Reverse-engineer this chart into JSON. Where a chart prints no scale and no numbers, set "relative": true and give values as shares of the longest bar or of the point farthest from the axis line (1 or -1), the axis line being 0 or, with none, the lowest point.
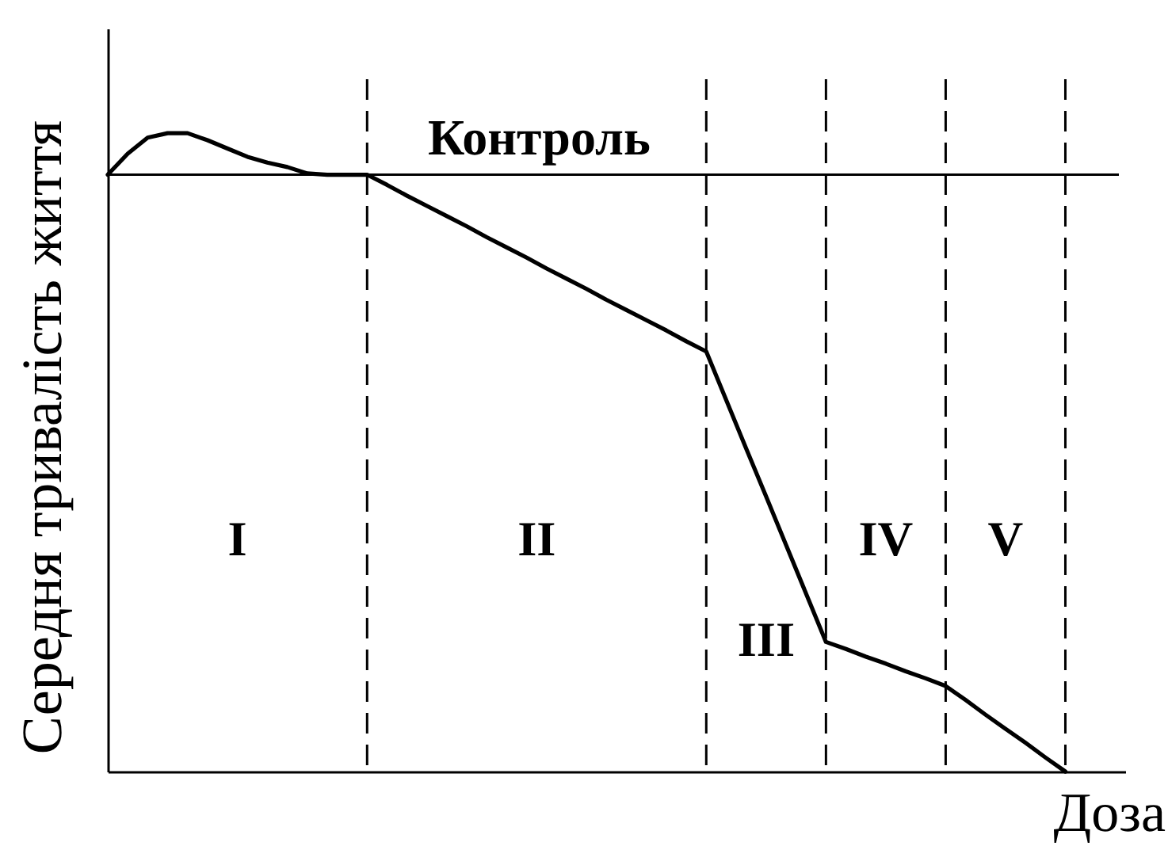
{
  "chart_data": {
    "type": "line",
    "relative": true,
    "xlabel": "Доза",
    "ylabel": "Середня тривалість життя",
    "categories": [
      null,
      null,
      null,
      null,
      null,
      null,
      null,
      null,
      null,
      null,
      null,
      null,
      null,
      null,
      null,
      null,
      null,
      null,
      null,
      null,
      null,
      null,
      null,
      null,
      null,
      null,
      null,
      null,
      null,
      null,
      null,
      null,
      null,
      null,
      null,
      null,
      null,
      null,
      null,
      null,
      null,
      null,
      null,
      null,
      null,
      null,
      null,
      null,
      null,
      null,
      null,
      null
    ],
    "series": [
      {
        "color": "#000000",
        "values": [
          0.935,
          0.968,
          0.993,
          1.0,
          1.0,
          0.989,
          0.976,
          0.963,
          0.954,
          0.947,
          0.937,
          0.935,
          0.935,
          0.935,
          0.919,
          0.902,
          0.886,
          0.87,
          0.854,
          0.837,
          0.821,
          0.805,
          0.788,
          0.772,
          0.756,
          0.739,
          0.723,
          0.707,
          0.691,
          0.674,
          0.658,
          0.582,
          0.506,
          0.431,
          0.355,
          0.279,
          0.203,
          0.192,
          0.18,
          0.169,
          0.157,
          0.146,
          0.134,
          0.112,
          0.089,
          0.067,
          0.045,
          0.022,
          0,
          null,
          null,
          null
        ]
      }
    ],
    "ref_lines": [
      {
        "axis": "y",
        "value": 0.935,
        "label": "Контроль",
        "line_style": "solid"
      }
    ],
    "annotations": [
      "I",
      "II",
      "III",
      "IV",
      "V"
    ],
    "grid": "x"
  }
}
